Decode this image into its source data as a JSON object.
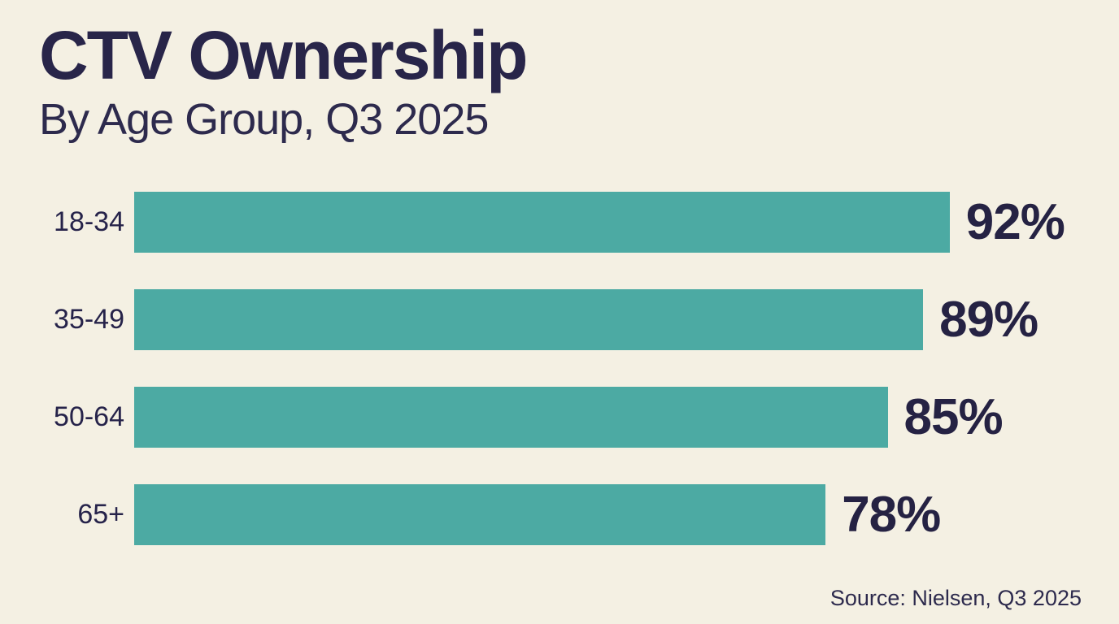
{
  "header": {
    "title": "CTV Ownership",
    "subtitle": "By Age Group, Q3 2025"
  },
  "source_note": "Source: Nielsen, Q3 2025",
  "colors": {
    "background": "#f4f0e3",
    "bar": "#4caaa3",
    "text_navy": "#282549"
  },
  "chart_data": {
    "type": "bar",
    "orientation": "horizontal",
    "title": "CTV Ownership",
    "subtitle": "By Age Group, Q3 2025",
    "categories": [
      "18-34",
      "35-49",
      "50-64",
      "65+"
    ],
    "values": [
      92,
      89,
      85,
      78
    ],
    "value_labels": [
      "92%",
      "89%",
      "85%",
      "78%"
    ],
    "xlabel": "",
    "ylabel": "Age Group",
    "xlim": [
      0,
      100
    ],
    "grid": false,
    "legend": false,
    "source": "Source: Nielsen, Q3 2025"
  }
}
